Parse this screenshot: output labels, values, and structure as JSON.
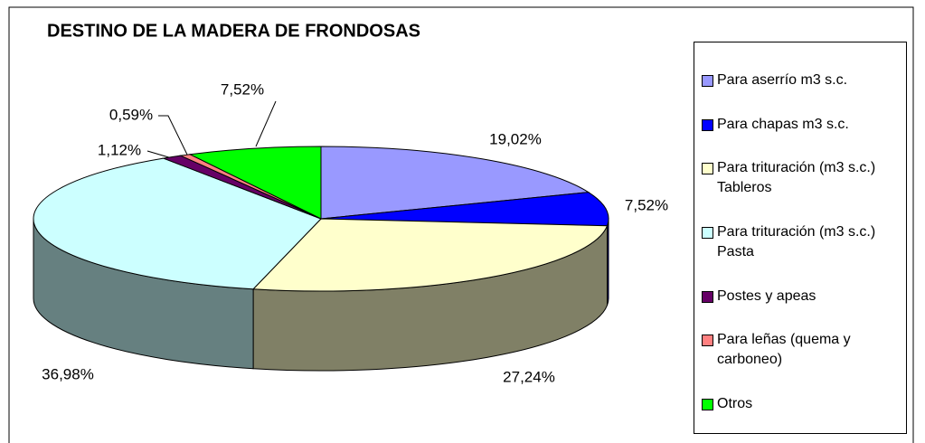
{
  "chart_data": {
    "type": "pie",
    "title": "DESTINO DE LA MADERA DE FRONDOSAS",
    "categories": [
      "Para aserrío m3 s.c.",
      "Para chapas m3 s.c.",
      "Para trituración (m3 s.c.) Tableros",
      "Para trituración (m3 s.c.) Pasta",
      "Postes y apeas",
      "Para leñas (quema y carboneo)",
      "Otros"
    ],
    "values": [
      19.02,
      7.52,
      27.24,
      36.98,
      1.12,
      0.59,
      7.52
    ],
    "value_labels": [
      "19,02%",
      "7,52%",
      "27,24%",
      "36,98%",
      "1,12%",
      "0,59%",
      "7,52%"
    ],
    "colors": [
      "#9999ff",
      "#0000ff",
      "#ffffcc",
      "#ccffff",
      "#660066",
      "#ff8080",
      "#00ff00"
    ],
    "legend": "right"
  }
}
